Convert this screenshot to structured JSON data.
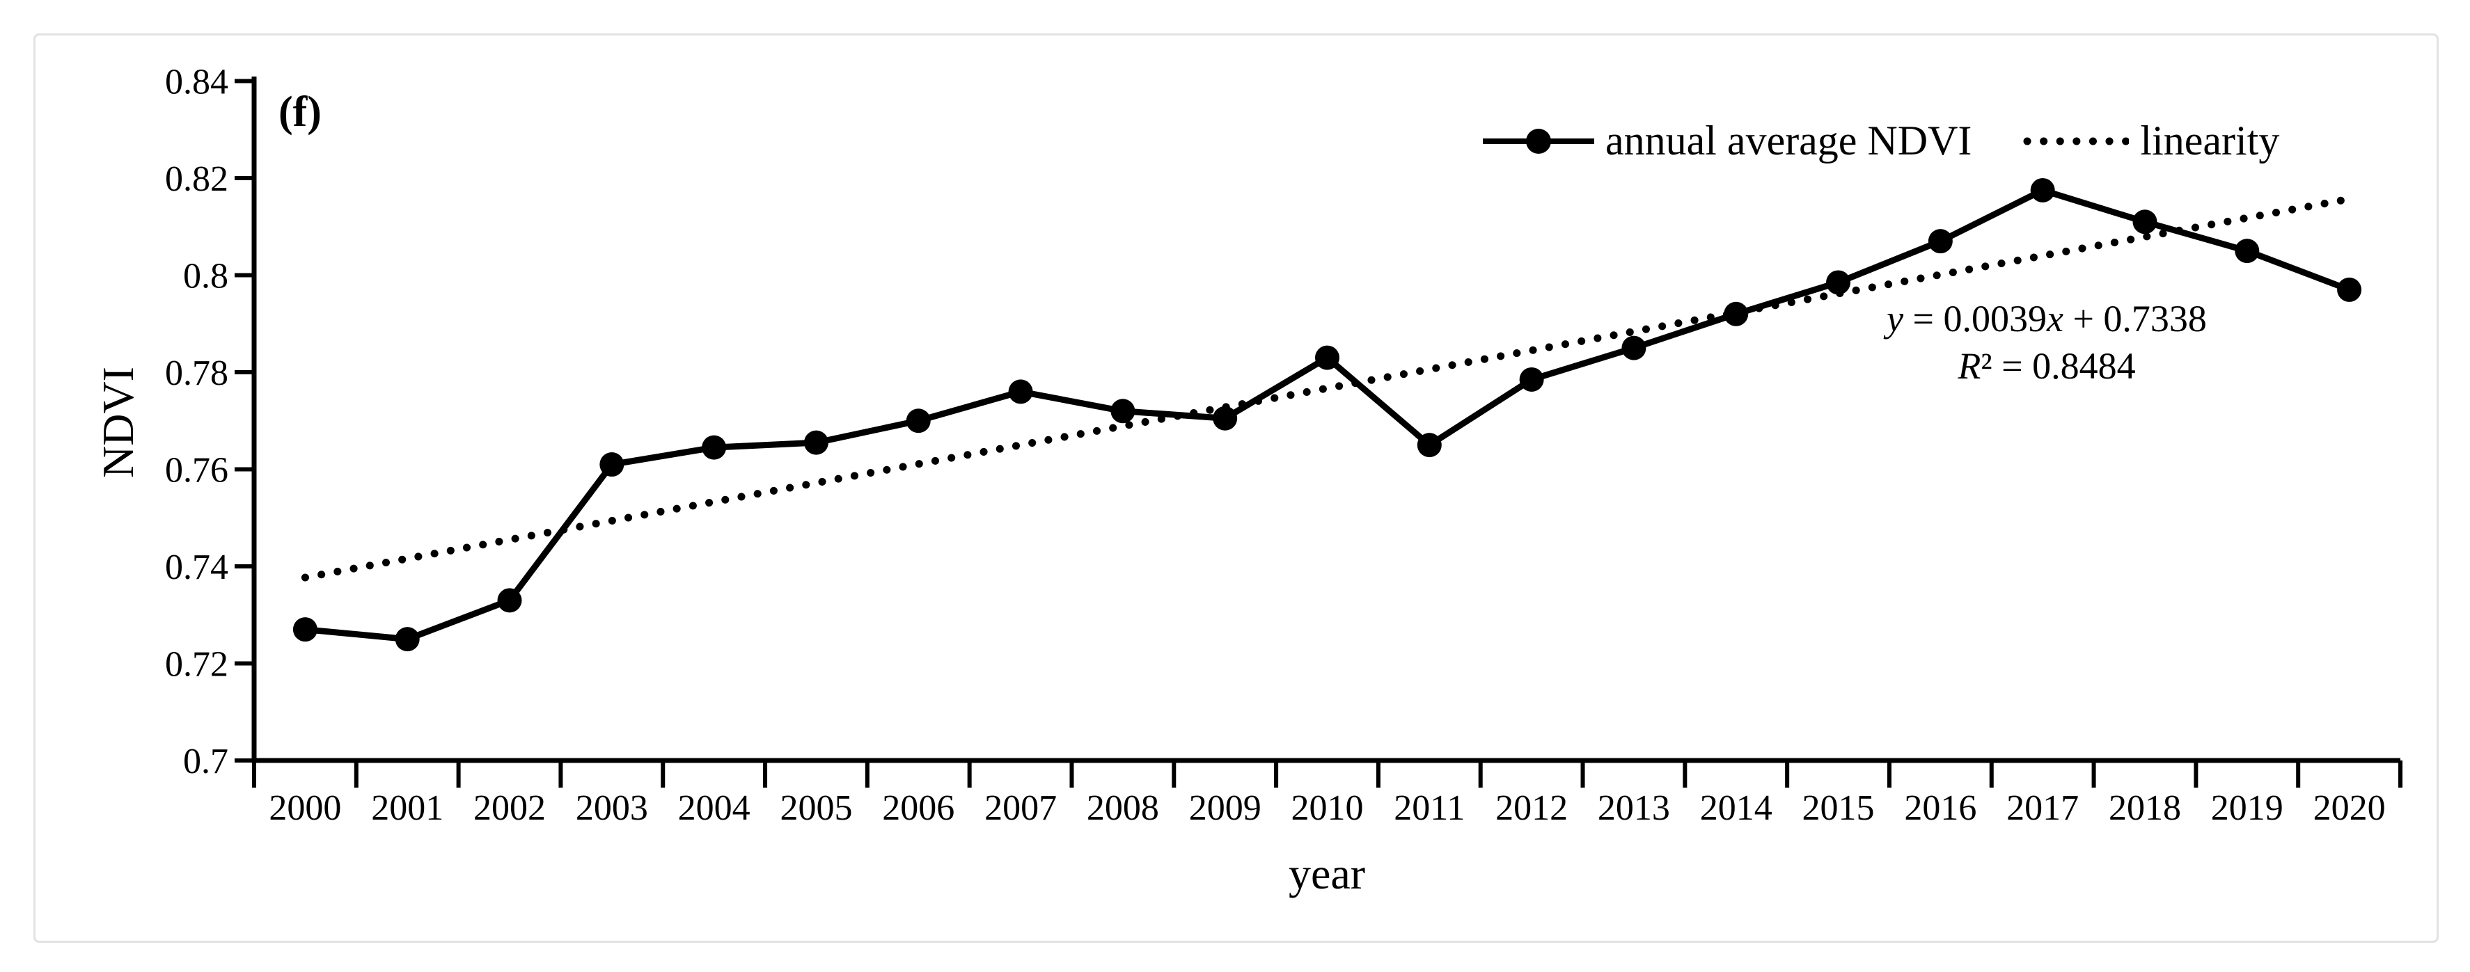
{
  "figure": {
    "panel_label": "(f)",
    "background_color": "#ffffff",
    "frame_color": "#e2e2e2",
    "ink_color": "#000000"
  },
  "legend": {
    "position": "top-right",
    "series_label": "annual average NDVI",
    "trend_label": "linearity",
    "series_swatch": "solid-line-with-circle-marker",
    "trend_swatch": "dotted-line"
  },
  "annotation": {
    "equation_y": "y",
    "equation_mid": " = 0.0039",
    "equation_x": "x",
    "equation_tail": " + 0.7338",
    "r2_symbol": "R",
    "r2_tail": "² = 0.8484"
  },
  "axes": {
    "y_title": "NDVI",
    "x_title": "year",
    "y_tick_labels": [
      "0.84",
      "0.82",
      "0.8",
      "0.78",
      "0.76",
      "0.74",
      "0.72",
      "0.7"
    ],
    "y_tick_values": [
      0.84,
      0.82,
      0.8,
      0.78,
      0.76,
      0.74,
      0.72,
      0.7
    ],
    "x_tick_labels": [
      "2000",
      "2001",
      "2002",
      "2003",
      "2004",
      "2005",
      "2006",
      "2007",
      "2008",
      "2009",
      "2010",
      "2011",
      "2012",
      "2013",
      "2014",
      "2015",
      "2016",
      "2017",
      "2018",
      "2019",
      "2020"
    ]
  },
  "chart_data": {
    "type": "line",
    "title": "",
    "xlabel": "year",
    "ylabel": "NDVI",
    "x": [
      2000,
      2001,
      2002,
      2003,
      2004,
      2005,
      2006,
      2007,
      2008,
      2009,
      2010,
      2011,
      2012,
      2013,
      2014,
      2015,
      2016,
      2017,
      2018,
      2019,
      2020
    ],
    "series": [
      {
        "name": "annual average NDVI",
        "style": "solid-black-line-circle-markers",
        "values": [
          0.727,
          0.725,
          0.733,
          0.761,
          0.7645,
          0.7655,
          0.77,
          0.776,
          0.772,
          0.7705,
          0.783,
          0.765,
          0.7785,
          0.785,
          0.792,
          0.7985,
          0.807,
          0.8175,
          0.811,
          0.805,
          0.797
        ]
      },
      {
        "name": "linearity",
        "style": "dotted-black-trendline",
        "slope": 0.0039,
        "intercept": 0.7338,
        "x_index_start": 1,
        "x_index_end": 21,
        "r_squared": 0.8484
      }
    ],
    "ylim": [
      0.7,
      0.84
    ],
    "y_tick_step": 0.02,
    "grid": false,
    "legend_position": "top-right"
  }
}
